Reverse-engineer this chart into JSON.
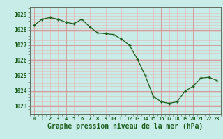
{
  "hours": [
    0,
    1,
    2,
    3,
    4,
    5,
    6,
    7,
    8,
    9,
    10,
    11,
    12,
    13,
    14,
    15,
    16,
    17,
    18,
    19,
    20,
    21,
    22,
    23
  ],
  "pressure": [
    1028.3,
    1028.7,
    1028.8,
    1028.7,
    1028.5,
    1028.4,
    1028.7,
    1028.2,
    1027.8,
    1027.75,
    1027.7,
    1027.4,
    1027.0,
    1026.1,
    1025.0,
    1023.65,
    1023.3,
    1023.2,
    1023.3,
    1024.0,
    1024.3,
    1024.85,
    1024.9,
    1024.7
  ],
  "line_color": "#1a5c1a",
  "marker_color": "#1a5c1a",
  "bg_color": "#c8ece8",
  "grid_minor_color": "#e8b8b8",
  "grid_major_color": "#d09090",
  "xlabel": "Graphe pression niveau de la mer (hPa)",
  "xlabel_color": "#1a5c1a",
  "tick_color": "#1a5c1a",
  "ylim_min": 1022.5,
  "ylim_max": 1029.5,
  "yticks": [
    1023,
    1024,
    1025,
    1026,
    1027,
    1028,
    1029
  ]
}
